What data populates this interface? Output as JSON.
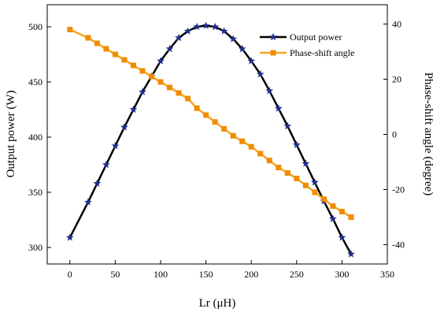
{
  "chart_data": {
    "type": "line",
    "title": "",
    "xlabel": "Lr (μH)",
    "ylabel_left": "Output power (W)",
    "ylabel_right": "Phase-shift angle (degree)",
    "xlim": [
      -25,
      350
    ],
    "ylim_left": [
      285,
      520
    ],
    "ylim_right": [
      -47,
      47
    ],
    "x_ticks": [
      "0",
      "50",
      "100",
      "150",
      "200",
      "250",
      "300",
      "350"
    ],
    "x_tick_values": [
      0,
      50,
      100,
      150,
      200,
      250,
      300,
      350
    ],
    "y_left_ticks": [
      "300",
      "350",
      "400",
      "450",
      "500"
    ],
    "y_left_tick_values": [
      300,
      350,
      400,
      450,
      500
    ],
    "y_right_ticks": [
      "-40",
      "-20",
      "0",
      "20",
      "40"
    ],
    "y_right_tick_values": [
      -40,
      -20,
      0,
      20,
      40
    ],
    "grid": false,
    "legend_position": "top-right",
    "series": [
      {
        "name": "Output power",
        "axis": "left",
        "color": "#000000",
        "marker_color": "#1f2d8c",
        "marker": "star",
        "x": [
          0,
          20,
          30,
          40,
          50,
          60,
          70,
          80,
          90,
          100,
          110,
          120,
          130,
          140,
          150,
          160,
          170,
          180,
          190,
          200,
          210,
          220,
          230,
          240,
          250,
          260,
          270,
          280,
          290,
          300,
          310
        ],
        "values": [
          309,
          341,
          358,
          375,
          392,
          409,
          425,
          441,
          455,
          469,
          480,
          490,
          496,
          500,
          501,
          500,
          496,
          489,
          480,
          469,
          457,
          442,
          426,
          410,
          393,
          376,
          359,
          342,
          326,
          309,
          294
        ]
      },
      {
        "name": "Phase-shift angle",
        "axis": "right",
        "color": "#f5a623",
        "marker_color": "#f08c00",
        "marker": "square",
        "x": [
          0,
          20,
          30,
          40,
          50,
          60,
          70,
          80,
          90,
          100,
          110,
          120,
          130,
          140,
          150,
          160,
          170,
          180,
          190,
          200,
          210,
          220,
          230,
          240,
          250,
          260,
          270,
          280,
          290,
          300,
          310
        ],
        "values": [
          38,
          35,
          33,
          31,
          29,
          27,
          25,
          23,
          21,
          19,
          17,
          15,
          13,
          9.5,
          7,
          4.5,
          2,
          -0.5,
          -2.5,
          -4.5,
          -7,
          -9.5,
          -12,
          -14,
          -16,
          -18.5,
          -21,
          -23.5,
          -26,
          -28,
          -30
        ]
      }
    ]
  }
}
